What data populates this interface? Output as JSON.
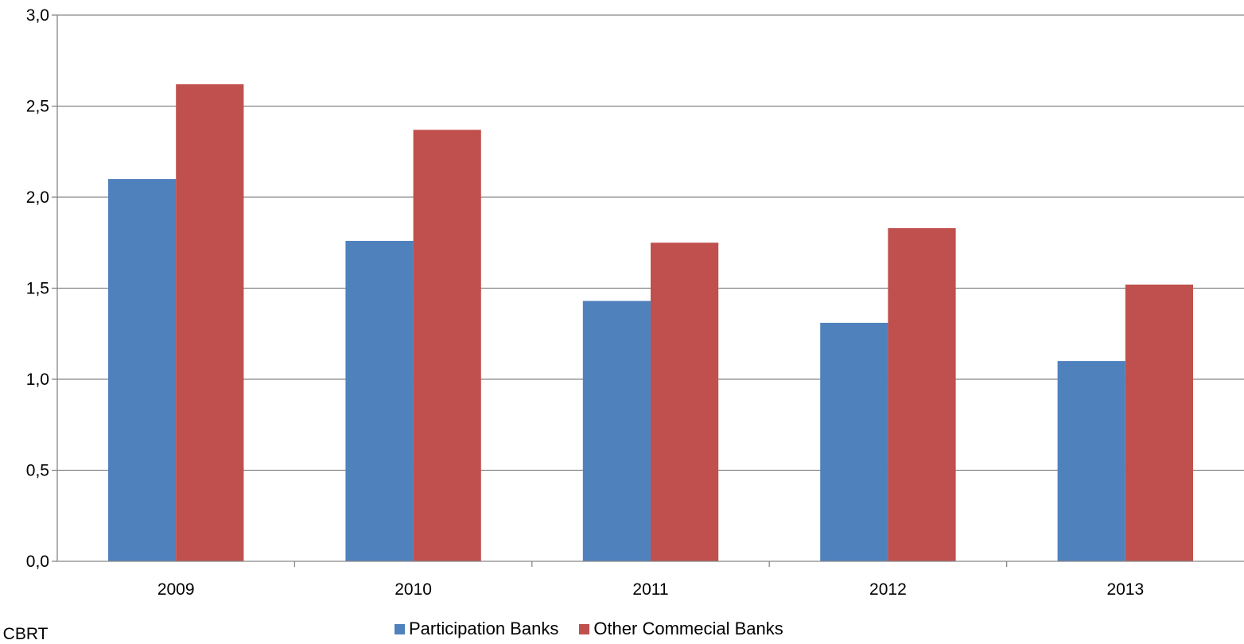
{
  "chart_data": {
    "type": "bar",
    "categories": [
      "2009",
      "2010",
      "2011",
      "2012",
      "2013"
    ],
    "series": [
      {
        "name": "Participation Banks",
        "color": "#4F81BD",
        "values": [
          2.1,
          1.76,
          1.43,
          1.31,
          1.1
        ]
      },
      {
        "name": "Other Commecial Banks",
        "color": "#C0504D",
        "values": [
          2.62,
          2.37,
          1.75,
          1.83,
          1.52
        ]
      }
    ],
    "yticks": [
      "0,0",
      "0,5",
      "1,0",
      "1,5",
      "2,0",
      "2,5",
      "3,0"
    ],
    "ylim": [
      0,
      3
    ],
    "grid": true,
    "legend_position": "bottom"
  },
  "source_note": ": CBRT"
}
